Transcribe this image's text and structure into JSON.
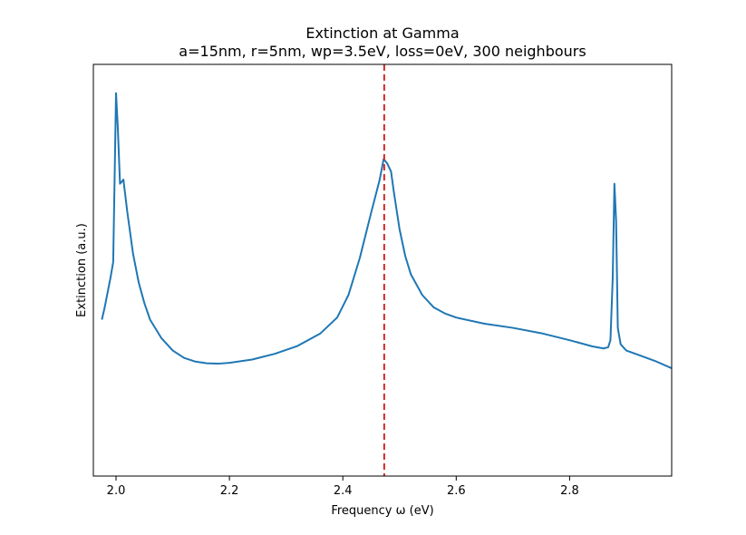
{
  "chart_data": {
    "type": "line",
    "title": "Extinction at Gamma",
    "subtitle": "a=15nm, r=5nm, wp=3.5eV, loss=0eV, 300 neighbours",
    "xlabel": "Frequency ω (eV)",
    "ylabel": "Extinction (a.u.)",
    "xlim": [
      1.96,
      2.98
    ],
    "ylim": [
      0,
      1
    ],
    "x_ticks": [
      2.0,
      2.2,
      2.4,
      2.6,
      2.8
    ],
    "x_tick_labels": [
      "2.0",
      "2.2",
      "2.4",
      "2.6",
      "2.8"
    ],
    "y_ticks_visible": false,
    "grid": false,
    "series": [
      {
        "name": "extinction",
        "color": "#1f77b4",
        "points": [
          [
            1.975,
            0.38
          ],
          [
            1.98,
            0.41
          ],
          [
            1.99,
            0.48
          ],
          [
            1.995,
            0.52
          ],
          [
            2.0,
            0.93
          ],
          [
            2.003,
            0.85
          ],
          [
            2.007,
            0.71
          ],
          [
            2.013,
            0.72
          ],
          [
            2.02,
            0.64
          ],
          [
            2.03,
            0.54
          ],
          [
            2.04,
            0.47
          ],
          [
            2.05,
            0.42
          ],
          [
            2.06,
            0.38
          ],
          [
            2.08,
            0.335
          ],
          [
            2.1,
            0.305
          ],
          [
            2.12,
            0.287
          ],
          [
            2.14,
            0.278
          ],
          [
            2.16,
            0.274
          ],
          [
            2.18,
            0.273
          ],
          [
            2.2,
            0.275
          ],
          [
            2.24,
            0.283
          ],
          [
            2.28,
            0.297
          ],
          [
            2.32,
            0.316
          ],
          [
            2.36,
            0.346
          ],
          [
            2.39,
            0.385
          ],
          [
            2.41,
            0.44
          ],
          [
            2.43,
            0.53
          ],
          [
            2.45,
            0.64
          ],
          [
            2.465,
            0.72
          ],
          [
            2.472,
            0.77
          ],
          [
            2.478,
            0.76
          ],
          [
            2.485,
            0.74
          ],
          [
            2.49,
            0.69
          ],
          [
            2.5,
            0.6
          ],
          [
            2.51,
            0.535
          ],
          [
            2.52,
            0.49
          ],
          [
            2.54,
            0.44
          ],
          [
            2.56,
            0.41
          ],
          [
            2.58,
            0.395
          ],
          [
            2.6,
            0.385
          ],
          [
            2.65,
            0.37
          ],
          [
            2.7,
            0.36
          ],
          [
            2.75,
            0.347
          ],
          [
            2.8,
            0.33
          ],
          [
            2.84,
            0.315
          ],
          [
            2.86,
            0.31
          ],
          [
            2.868,
            0.313
          ],
          [
            2.872,
            0.33
          ],
          [
            2.876,
            0.48
          ],
          [
            2.879,
            0.71
          ],
          [
            2.882,
            0.62
          ],
          [
            2.885,
            0.36
          ],
          [
            2.89,
            0.32
          ],
          [
            2.9,
            0.305
          ],
          [
            2.92,
            0.295
          ],
          [
            2.95,
            0.28
          ],
          [
            2.98,
            0.262
          ]
        ]
      }
    ],
    "vline": {
      "x": 2.473,
      "color": "#d62728",
      "style": "dashed"
    }
  }
}
